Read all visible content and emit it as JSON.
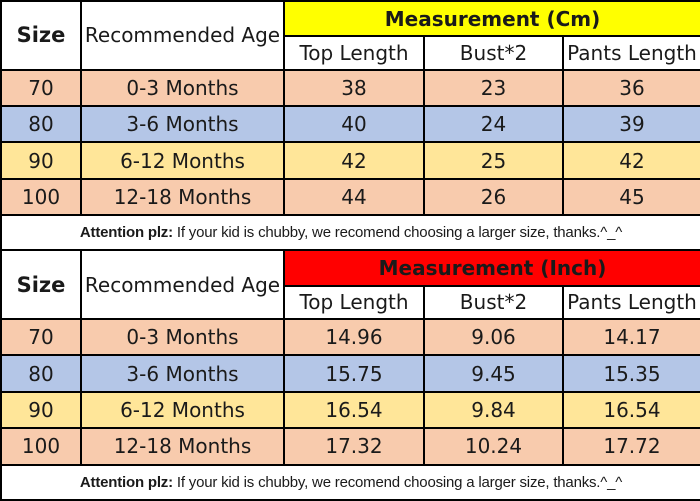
{
  "colors": {
    "cm_header_bg": "#FFFF00",
    "inch_header_bg": "#FF0000",
    "row_peach": "#F8CBAD",
    "row_blue": "#B4C6E7",
    "row_yellow": "#FFE699",
    "border": "#000000",
    "text": "#1A1A1A"
  },
  "tables": [
    {
      "size_header": "Size",
      "age_header": "Recommended Age",
      "measurement_header": "Measurement (Cm)",
      "measurement_bg": "#FFFF00",
      "columns": [
        "Top Length",
        "Bust*2",
        "Pants Length"
      ],
      "rows": [
        {
          "size": "70",
          "age": "0-3 Months",
          "top_length": "38",
          "bust": "23",
          "pants_length": "36",
          "bg": "#F8CBAD"
        },
        {
          "size": "80",
          "age": "3-6 Months",
          "top_length": "40",
          "bust": "24",
          "pants_length": "39",
          "bg": "#B4C6E7"
        },
        {
          "size": "90",
          "age": "6-12 Months",
          "top_length": "42",
          "bust": "25",
          "pants_length": "42",
          "bg": "#FFE699"
        },
        {
          "size": "100",
          "age": "12-18 Months",
          "top_length": "44",
          "bust": "26",
          "pants_length": "45",
          "bg": "#F8CBAD"
        }
      ],
      "attention_label": "Attention plz:",
      "attention_text": " If your kid is chubby, we recomend choosing a larger size, thanks.^_^"
    },
    {
      "size_header": "Size",
      "age_header": "Recommended Age",
      "measurement_header": "Measurement (Inch)",
      "measurement_bg": "#FF0000",
      "columns": [
        "Top Length",
        "Bust*2",
        "Pants Length"
      ],
      "rows": [
        {
          "size": "70",
          "age": "0-3 Months",
          "top_length": "14.96",
          "bust": "9.06",
          "pants_length": "14.17",
          "bg": "#F8CBAD"
        },
        {
          "size": "80",
          "age": "3-6 Months",
          "top_length": "15.75",
          "bust": "9.45",
          "pants_length": "15.35",
          "bg": "#B4C6E7"
        },
        {
          "size": "90",
          "age": "6-12 Months",
          "top_length": "16.54",
          "bust": "9.84",
          "pants_length": "16.54",
          "bg": "#FFE699"
        },
        {
          "size": "100",
          "age": "12-18 Months",
          "top_length": "17.32",
          "bust": "10.24",
          "pants_length": "17.72",
          "bg": "#F8CBAD"
        }
      ],
      "attention_label": "Attention plz:",
      "attention_text": " If your kid is chubby, we recomend choosing a larger size, thanks.^_^"
    }
  ]
}
